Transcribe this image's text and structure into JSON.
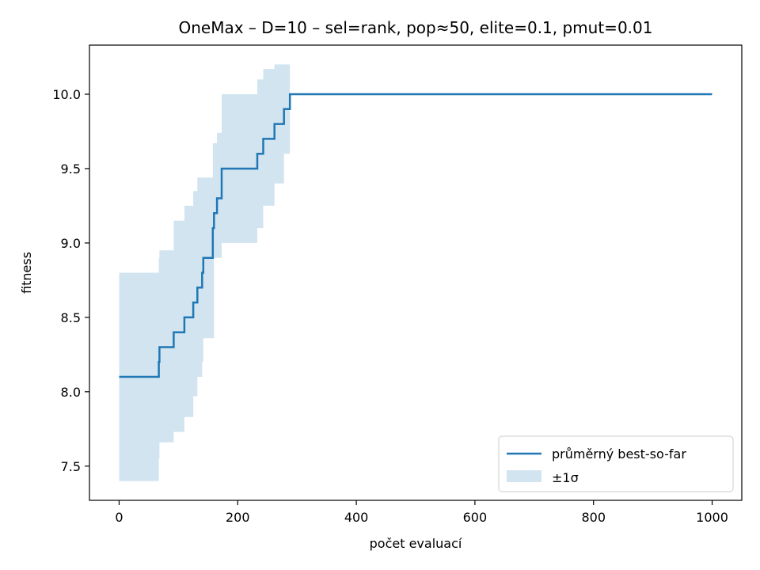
{
  "chart_data": {
    "type": "line",
    "title": "OneMax – D=10 – sel=rank, pop≈50, elite=0.1, pmut=0.01",
    "xlabel": "počet evaluací",
    "ylabel": "fitness",
    "xlim": [
      -50,
      1050
    ],
    "ylim": [
      7.27,
      10.33
    ],
    "xticks": [
      0,
      200,
      400,
      600,
      800,
      1000
    ],
    "yticks": [
      7.5,
      8.0,
      8.5,
      9.0,
      9.5,
      10.0
    ],
    "xtick_labels": [
      "0",
      "200",
      "400",
      "600",
      "800",
      "1000"
    ],
    "ytick_labels": [
      "7.5",
      "8.0",
      "8.5",
      "9.0",
      "9.5",
      "10.0"
    ],
    "grid": false,
    "legend_position": "lower-right",
    "series": [
      {
        "name": "průměrný best-so-far",
        "style": "step-line",
        "color": "#1f77b4",
        "x": [
          0,
          65,
          67,
          68,
          92,
          110,
          125,
          132,
          140,
          142,
          148,
          158,
          160,
          165,
          173,
          233,
          243,
          262,
          278,
          288,
          1000
        ],
        "y": [
          8.1,
          8.1,
          8.2,
          8.3,
          8.4,
          8.5,
          8.6,
          8.7,
          8.8,
          8.9,
          8.9,
          9.1,
          9.2,
          9.3,
          9.5,
          9.6,
          9.7,
          9.8,
          9.9,
          10.0,
          10.0
        ]
      },
      {
        "name": "±1σ",
        "style": "band",
        "color": "#1f77b4",
        "opacity": 0.2,
        "x": [
          0,
          65,
          67,
          68,
          92,
          110,
          125,
          132,
          140,
          142,
          148,
          158,
          160,
          165,
          173,
          233,
          243,
          262,
          278,
          288,
          1000
        ],
        "upper": [
          8.8,
          8.8,
          8.9,
          8.95,
          9.15,
          9.25,
          9.35,
          9.44,
          9.44,
          9.44,
          9.44,
          9.67,
          9.67,
          9.74,
          10.0,
          10.1,
          10.17,
          10.2,
          10.2,
          10.0,
          10.0
        ],
        "lower": [
          7.4,
          7.4,
          7.55,
          7.66,
          7.73,
          7.83,
          7.97,
          8.1,
          8.2,
          8.36,
          8.36,
          8.36,
          8.9,
          8.9,
          9.0,
          9.1,
          9.25,
          9.4,
          9.6,
          10.0,
          10.0
        ]
      }
    ]
  }
}
